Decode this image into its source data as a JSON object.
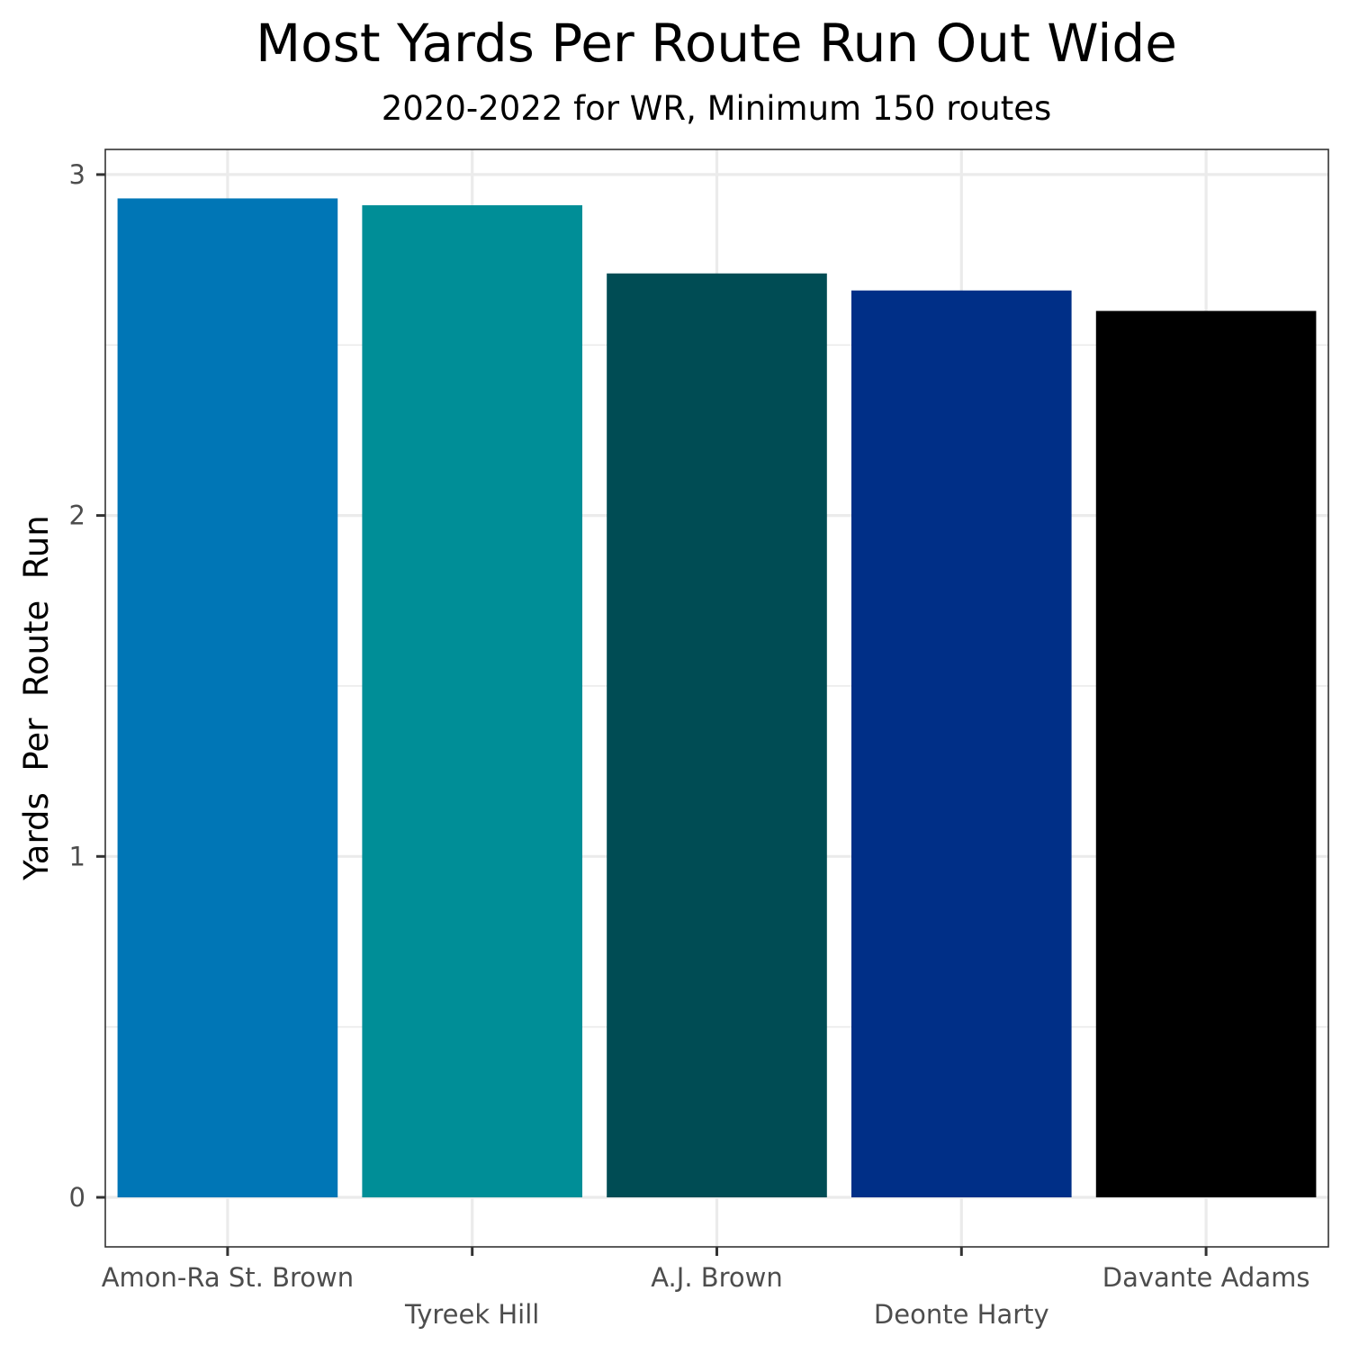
{
  "chart_data": {
    "type": "bar",
    "title": "Most Yards Per Route Run Out Wide",
    "subtitle": "2020-2022 for WR, Minimum 150 routes",
    "xlabel": "",
    "ylabel": "Yards  Per  Route  Run",
    "categories": [
      "Amon-Ra St. Brown",
      "Tyreek Hill",
      "A.J. Brown",
      "Deonte Harty",
      "Davante Adams"
    ],
    "values": [
      2.93,
      2.91,
      2.71,
      2.66,
      2.6
    ],
    "colors": [
      "#0076B6",
      "#008E97",
      "#004C54",
      "#002F87",
      "#000000"
    ],
    "yticks": [
      0,
      1,
      2,
      3
    ],
    "ylim": [
      -0.15,
      3.08
    ],
    "grid": true,
    "legend": "none"
  }
}
